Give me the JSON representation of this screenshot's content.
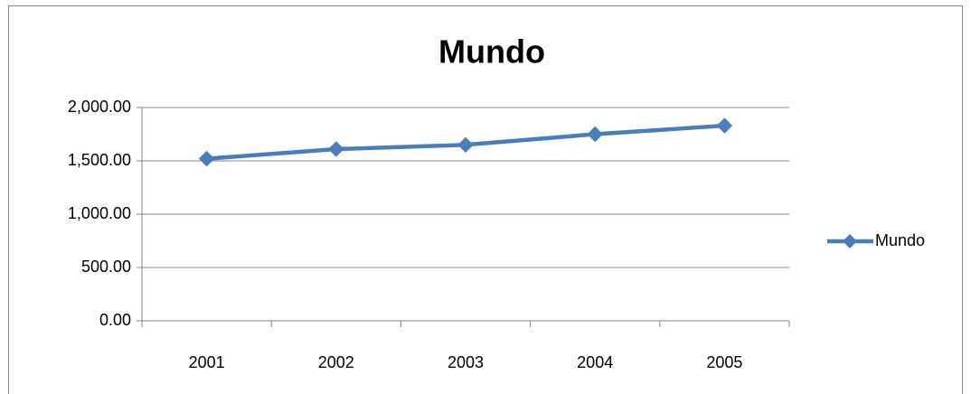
{
  "chart_data": {
    "type": "line",
    "title": "Mundo",
    "categories": [
      "2001",
      "2002",
      "2003",
      "2004",
      "2005"
    ],
    "series": [
      {
        "name": "Mundo",
        "color": "#4a7ebb",
        "values": [
          1520,
          1610,
          1650,
          1750,
          1830
        ]
      }
    ],
    "ylim": [
      0,
      2000
    ],
    "yticks": [
      {
        "value": 0,
        "label": "0.00"
      },
      {
        "value": 500,
        "label": "500.00"
      },
      {
        "value": 1000,
        "label": "1,000.00"
      },
      {
        "value": 1500,
        "label": "1,500.00"
      },
      {
        "value": 2000,
        "label": "2,000.00"
      }
    ],
    "grid": true,
    "legend": "right"
  }
}
